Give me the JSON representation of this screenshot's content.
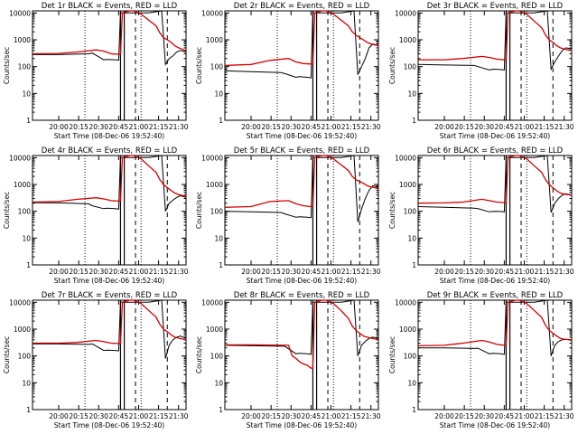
{
  "chart_data": {
    "type": "line",
    "shared": {
      "xlabel": "Start Time (08-Dec-06 19:52:40)",
      "ylabel": "Counts/sec",
      "y_scale": "log",
      "ylim": [
        1,
        12000
      ],
      "y_ticks": [
        "1",
        "10",
        "100",
        "1000",
        "10000"
      ],
      "xlim_minutes": [
        -7,
        34
      ],
      "x_ticks": [
        "20:00",
        "20:15",
        "20:30",
        "20:45",
        "21:00",
        "21:15",
        "21:30"
      ],
      "black_meaning": "Events",
      "red_meaning": "LLD",
      "colors": {
        "events": "#000000",
        "lld": "#d00000"
      }
    },
    "panels": [
      {
        "title": "Det 1r BLACK = Events, RED = LLD",
        "series": [
          {
            "name": "Events",
            "x": [
              -7,
              0,
              8,
              9,
              12,
              13,
              15,
              16,
              16.5,
              21,
              23,
              24,
              27.5,
              28.5,
              29.5,
              30.5,
              31.5,
              32.5,
              34
            ],
            "values": [
              280,
              280,
              300,
              320,
              180,
              185,
              180,
              175,
              10000,
              10000,
              10000,
              10000,
              12000,
              120,
              200,
              250,
              350,
              400,
              350
            ]
          },
          {
            "name": "LLD",
            "x": [
              -7,
              0,
              5,
              10,
              12,
              14,
              16,
              16.5,
              17,
              19,
              20,
              22,
              24,
              26,
              27,
              28,
              29,
              30,
              31,
              32,
              33,
              34
            ],
            "values": [
              300,
              310,
              350,
              420,
              380,
              300,
              290,
              290,
              10000,
              12000,
              12000,
              9000,
              5500,
              3300,
              1800,
              1200,
              1000,
              800,
              600,
              500,
              450,
              380
            ]
          }
        ]
      },
      {
        "title": "Det 2r BLACK = Events, RED = LLD",
        "series": [
          {
            "name": "Events",
            "x": [
              -7,
              0,
              8,
              9,
              12,
              13,
              15,
              16,
              16.5,
              21,
              23,
              24,
              27.5,
              28.5,
              29.5,
              30.5,
              31.5,
              32.5,
              34
            ],
            "values": [
              70,
              65,
              60,
              55,
              40,
              42,
              40,
              38,
              10000,
              10000,
              10000,
              10000,
              12000,
              50,
              100,
              200,
              500,
              700,
              600
            ]
          },
          {
            "name": "LLD",
            "x": [
              -7,
              0,
              5,
              10,
              12,
              14,
              16,
              16.5,
              17,
              19,
              20,
              22,
              24,
              26,
              27,
              28,
              29,
              30,
              31,
              32,
              33,
              34
            ],
            "values": [
              110,
              120,
              170,
              200,
              150,
              130,
              125,
              125,
              10000,
              12000,
              12000,
              9000,
              5500,
              3300,
              2000,
              1500,
              1200,
              1000,
              800,
              700,
              650,
              600
            ]
          }
        ]
      },
      {
        "title": "Det 3r BLACK = Events, RED = LLD",
        "series": [
          {
            "name": "Events",
            "x": [
              -7,
              0,
              8,
              9,
              12,
              13,
              15,
              16,
              16.5,
              21,
              23,
              24,
              27.5,
              28.5,
              29.5,
              30.5,
              31.5,
              32.5,
              34
            ],
            "values": [
              120,
              115,
              110,
              100,
              75,
              80,
              78,
              75,
              10000,
              10000,
              10000,
              10000,
              12000,
              80,
              150,
              250,
              400,
              500,
              450
            ]
          },
          {
            "name": "LLD",
            "x": [
              -7,
              0,
              5,
              10,
              12,
              14,
              16,
              16.5,
              17,
              19,
              20,
              22,
              24,
              26,
              27,
              28,
              29,
              30,
              31,
              32,
              33,
              34
            ],
            "values": [
              180,
              180,
              200,
              240,
              220,
              190,
              180,
              180,
              10000,
              12000,
              12000,
              9000,
              5000,
              2800,
              1500,
              1000,
              800,
              600,
              500,
              450,
              420,
              400
            ]
          }
        ]
      },
      {
        "title": "Det 4r BLACK = Events, RED = LLD",
        "series": [
          {
            "name": "Events",
            "x": [
              -7,
              0,
              8,
              9,
              12,
              13,
              15,
              16,
              16.5,
              21,
              23,
              24,
              27.5,
              28.5,
              29.5,
              30.5,
              31.5,
              32.5,
              34
            ],
            "values": [
              210,
              205,
              190,
              160,
              125,
              130,
              125,
              120,
              10000,
              10000,
              10000,
              10000,
              12000,
              100,
              200,
              260,
              330,
              380,
              330
            ]
          },
          {
            "name": "LLD",
            "x": [
              -7,
              0,
              5,
              10,
              12,
              14,
              16,
              16.5,
              17,
              19,
              20,
              22,
              24,
              26,
              27,
              28,
              29,
              30,
              31,
              32,
              33,
              34
            ],
            "values": [
              220,
              230,
              280,
              320,
              290,
              250,
              240,
              240,
              10000,
              12000,
              12000,
              9000,
              5000,
              2800,
              1500,
              1000,
              750,
              600,
              480,
              420,
              390,
              340
            ]
          }
        ]
      },
      {
        "title": "Det 5r BLACK = Events, RED = LLD",
        "series": [
          {
            "name": "Events",
            "x": [
              -7,
              0,
              8,
              9,
              12,
              13,
              15,
              16,
              16.5,
              21,
              23,
              24,
              27.5,
              28.5,
              29.5,
              30.5,
              31.5,
              32.5,
              34
            ],
            "values": [
              100,
              95,
              90,
              80,
              60,
              62,
              60,
              58,
              10000,
              10000,
              10000,
              10000,
              12000,
              40,
              120,
              300,
              600,
              900,
              800
            ]
          },
          {
            "name": "LLD",
            "x": [
              -7,
              0,
              5,
              10,
              12,
              14,
              16,
              16.5,
              17,
              19,
              20,
              22,
              24,
              26,
              27,
              28,
              29,
              30,
              31,
              32,
              33,
              34
            ],
            "values": [
              140,
              150,
              230,
              250,
              190,
              160,
              150,
              150,
              10000,
              12000,
              12000,
              9000,
              5500,
              3300,
              2000,
              1500,
              1300,
              1100,
              900,
              800,
              760,
              700
            ]
          }
        ]
      },
      {
        "title": "Det 6r BLACK = Events, RED = LLD",
        "series": [
          {
            "name": "Events",
            "x": [
              -7,
              0,
              8,
              9,
              12,
              13,
              15,
              16,
              16.5,
              21,
              23,
              24,
              27.5,
              28.5,
              29.5,
              30.5,
              31.5,
              32.5,
              34
            ],
            "values": [
              150,
              140,
              130,
              125,
              95,
              100,
              98,
              95,
              10000,
              10000,
              10000,
              10000,
              12000,
              90,
              200,
              300,
              400,
              450,
              400
            ]
          },
          {
            "name": "LLD",
            "x": [
              -7,
              0,
              5,
              10,
              12,
              14,
              16,
              16.5,
              17,
              19,
              20,
              22,
              24,
              26,
              27,
              28,
              29,
              30,
              31,
              32,
              33,
              34
            ],
            "values": [
              200,
              205,
              220,
              280,
              250,
              220,
              210,
              210,
              10000,
              12000,
              12000,
              9000,
              5000,
              2800,
              1500,
              1000,
              750,
              580,
              480,
              440,
              420,
              400
            ]
          }
        ]
      },
      {
        "title": "Det 7r BLACK = Events, RED = LLD",
        "series": [
          {
            "name": "Events",
            "x": [
              -7,
              0,
              8,
              9,
              12,
              13,
              15,
              16,
              16.5,
              21,
              23,
              24,
              27.5,
              28.5,
              29.5,
              30.5,
              31.5,
              32.5,
              34
            ],
            "values": [
              280,
              280,
              270,
              280,
              160,
              165,
              160,
              155,
              10000,
              10000,
              10000,
              10000,
              12000,
              80,
              250,
              400,
              500,
              550,
              450
            ]
          },
          {
            "name": "LLD",
            "x": [
              -7,
              0,
              5,
              10,
              12,
              14,
              16,
              16.5,
              17,
              19,
              20,
              22,
              24,
              26,
              27,
              28,
              29,
              30,
              31,
              32,
              33,
              34
            ],
            "values": [
              300,
              300,
              320,
              380,
              340,
              300,
              290,
              290,
              10000,
              12000,
              12000,
              9000,
              5000,
              2800,
              1500,
              1000,
              800,
              620,
              500,
              460,
              430,
              400
            ]
          }
        ]
      },
      {
        "title": "Det 8r BLACK = Events, RED = LLD",
        "series": [
          {
            "name": "Events",
            "x": [
              -7,
              0,
              8,
              9,
              12,
              13,
              15,
              16,
              16.5,
              21,
              23,
              24,
              27.5,
              28.5,
              29.5,
              30.5,
              31.5,
              32.5,
              34
            ],
            "values": [
              250,
              240,
              230,
              230,
              120,
              125,
              120,
              115,
              10000,
              10000,
              10000,
              10000,
              12000,
              100,
              250,
              350,
              450,
              500,
              450
            ]
          },
          {
            "name": "LLD",
            "x": [
              -7,
              0,
              5,
              10,
              11,
              12,
              13,
              14,
              15,
              16,
              16.5,
              17,
              19,
              20,
              22,
              24,
              26,
              27,
              28,
              29,
              30,
              31,
              32,
              33,
              34
            ],
            "values": [
              260,
              260,
              255,
              250,
              100,
              80,
              60,
              50,
              45,
              35,
              35,
              10000,
              12000,
              12000,
              9000,
              5000,
              2500,
              1300,
              900,
              700,
              550,
              500,
              460,
              430,
              420
            ]
          }
        ]
      },
      {
        "title": "Det 9r BLACK = Events, RED = LLD",
        "series": [
          {
            "name": "Events",
            "x": [
              -7,
              0,
              8,
              9,
              12,
              13,
              15,
              16,
              16.5,
              21,
              23,
              24,
              27.5,
              28.5,
              29.5,
              30.5,
              31.5,
              32.5,
              34
            ],
            "values": [
              200,
              200,
              190,
              195,
              120,
              125,
              120,
              115,
              10000,
              10000,
              10000,
              10000,
              12000,
              100,
              250,
              350,
              400,
              420,
              380
            ]
          },
          {
            "name": "LLD",
            "x": [
              -7,
              0,
              5,
              10,
              12,
              14,
              16,
              16.5,
              17,
              19,
              20,
              22,
              24,
              26,
              27,
              28,
              29,
              30,
              31,
              32,
              33,
              34
            ],
            "values": [
              240,
              250,
              300,
              380,
              330,
              270,
              250,
              250,
              10000,
              12000,
              12000,
              9000,
              5000,
              2700,
              1400,
              900,
              700,
              550,
              450,
              420,
              410,
              400
            ]
          }
        ]
      }
    ]
  }
}
